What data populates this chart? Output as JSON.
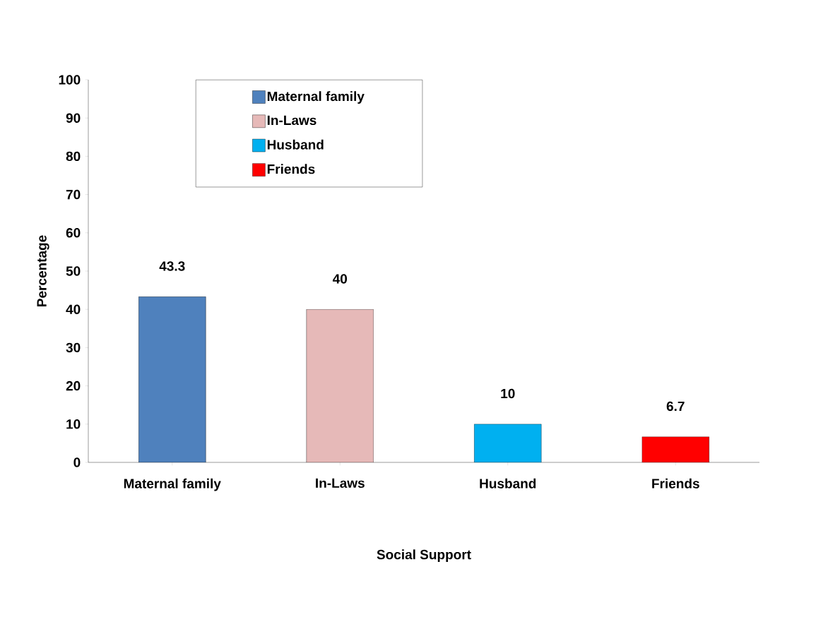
{
  "chart_data": {
    "type": "bar",
    "xlabel": "Social Support",
    "ylabel": "Percentage",
    "categories": [
      "Maternal family",
      "In-Laws",
      "Husband",
      "Friends"
    ],
    "series": [
      {
        "name": "Maternal family",
        "color": "#4f81bd",
        "values": [
          43.3,
          null,
          null,
          null
        ]
      },
      {
        "name": "In-Laws",
        "color": "#e6b9b8",
        "values": [
          null,
          40,
          null,
          null
        ]
      },
      {
        "name": "Husband",
        "color": "#00b0f0",
        "values": [
          null,
          null,
          10,
          null
        ]
      },
      {
        "name": "Friends",
        "color": "#ff0000",
        "values": [
          null,
          null,
          null,
          6.7
        ]
      }
    ],
    "ylim": [
      0,
      100
    ],
    "yticks": [
      0,
      10,
      20,
      30,
      40,
      50,
      60,
      70,
      80,
      90,
      100
    ],
    "data_labels": true,
    "legend": "top left",
    "grid": false
  }
}
